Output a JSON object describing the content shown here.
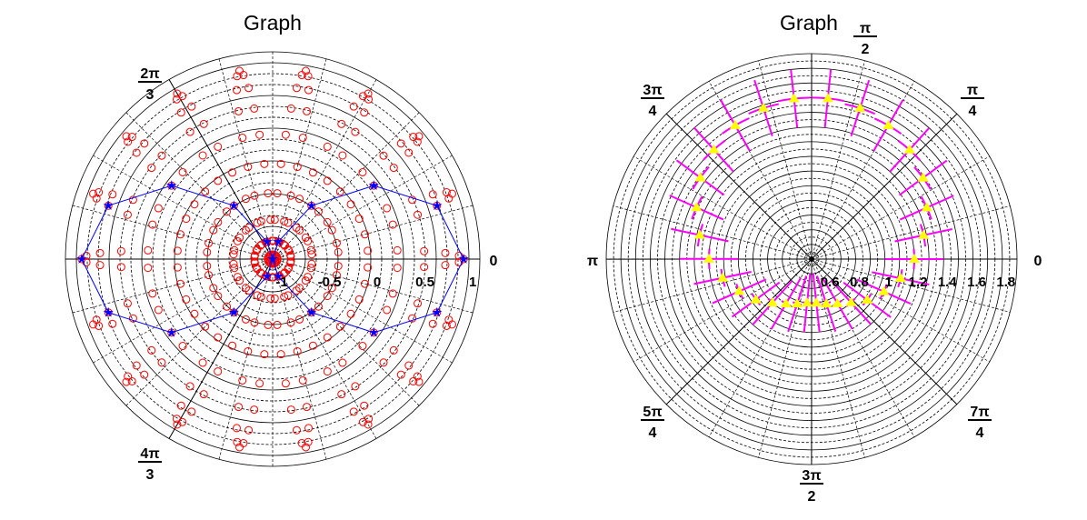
{
  "chart_data": [
    {
      "type": "scatter",
      "coordinate_system": "polar",
      "title": "Graph",
      "radial_range": [
        -1,
        1.17
      ],
      "radial_tick_labels": [
        "-1",
        "-0.5",
        "0",
        "0.5",
        "1"
      ],
      "radial_tick_values": [
        -1,
        -0.5,
        0,
        0.5,
        1
      ],
      "angular_tick_labels": [
        {
          "num": "",
          "den": "",
          "text": "0",
          "angle": 0
        },
        {
          "num": "2π",
          "den": "3",
          "text": "",
          "angle": 2.094
        },
        {
          "num": "4π",
          "den": "3",
          "text": "",
          "angle": 4.189
        }
      ],
      "grid": true,
      "series": [
        {
          "marker": "open-circle",
          "color": "#ff0000",
          "theta_step_deg": 1,
          "r_pattern": [
            1,
            0.951,
            0.809,
            0.588,
            0.309,
            0,
            -0.309,
            -0.588,
            -0.809,
            -0.951,
            -1,
            -0.951,
            -0.809,
            -0.588,
            -0.309,
            0,
            0.309,
            0.588,
            0.809,
            0.951
          ],
          "r_pattern_repeats": 18
        },
        {
          "marker": "star",
          "color": "#0000ff",
          "line": true,
          "theta": [
            0,
            0.314,
            0.628,
            0.942,
            1.257,
            1.571,
            1.885,
            2.199,
            2.513,
            2.827,
            3.142,
            3.456,
            3.77,
            4.084,
            4.398,
            4.712,
            5.027,
            5.341,
            5.655,
            5.969
          ],
          "r": [
            1,
            0.809,
            0.309,
            -0.309,
            -0.809,
            -1,
            -0.809,
            -0.309,
            0.309,
            0.809,
            1,
            0.809,
            0.309,
            -0.309,
            -0.809,
            -1,
            -0.809,
            -0.309,
            0.309,
            0.809
          ]
        }
      ]
    },
    {
      "type": "scatter",
      "coordinate_system": "polar",
      "title": "Graph",
      "radial_range": [
        0.5,
        1.9
      ],
      "radial_tick_labels": [
        "0.6",
        "0.8",
        "1",
        "1.2",
        "1.4",
        "1.6",
        "1.8"
      ],
      "radial_tick_values": [
        0.6,
        0.8,
        1,
        1.2,
        1.4,
        1.6,
        1.8
      ],
      "angular_tick_labels": [
        {
          "num": "",
          "den": "",
          "text": "0",
          "angle": 0
        },
        {
          "num": "π",
          "den": "4",
          "text": "",
          "angle": 0.785
        },
        {
          "num": "π",
          "den": "2",
          "text": "",
          "angle": 1.571
        },
        {
          "num": "3π",
          "den": "4",
          "text": "",
          "angle": 2.356
        },
        {
          "num": "",
          "den": "",
          "text": "π",
          "angle": 3.142
        },
        {
          "num": "5π",
          "den": "4",
          "text": "",
          "angle": 3.927
        },
        {
          "num": "3π",
          "den": "2",
          "text": "",
          "angle": 4.712
        },
        {
          "num": "7π",
          "den": "4",
          "text": "",
          "angle": 5.498
        }
      ],
      "grid": true,
      "series": [
        {
          "marker": "triangle",
          "color": "#ffff00",
          "error_color": "#ff00ff",
          "theta": [
            0,
            0.21,
            0.42,
            0.63,
            0.84,
            1.05,
            1.26,
            1.47,
            1.68,
            1.88,
            2.09,
            2.3,
            2.51,
            2.72,
            2.93,
            3.14,
            3.35,
            3.56,
            3.77,
            3.98,
            4.19,
            4.4,
            4.61,
            4.82,
            5.03,
            5.24,
            5.45,
            5.65,
            5.86,
            6.07
          ],
          "r": [
            1.2,
            1.28,
            1.36,
            1.44,
            1.5,
            1.55,
            1.58,
            1.6,
            1.6,
            1.58,
            1.55,
            1.5,
            1.44,
            1.36,
            1.28,
            1.2,
            1.12,
            1.04,
            0.97,
            0.9,
            0.85,
            0.82,
            0.8,
            0.8,
            0.82,
            0.85,
            0.9,
            0.97,
            1.04,
            1.12
          ],
          "theta_error": 0.1,
          "r_error": 0.2
        }
      ]
    }
  ]
}
